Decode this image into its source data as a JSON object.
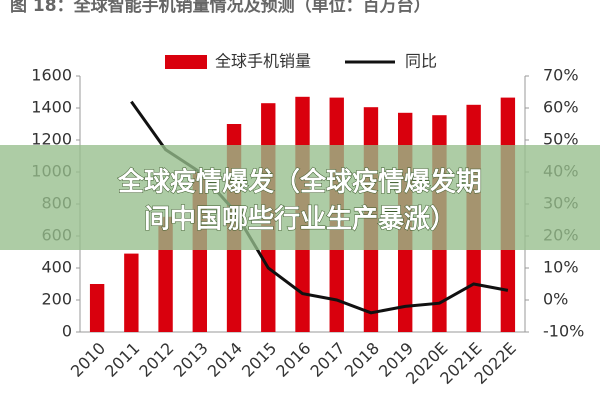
{
  "chart_data": {
    "type": "bar-line",
    "title": "图 18：全球智能手机销量情况及预测（单位：百万台）",
    "categories": [
      "2010",
      "2011",
      "2012",
      "2013",
      "2014",
      "2015",
      "2016",
      "2017",
      "2018",
      "2019",
      "2020E",
      "2021E",
      "2022E"
    ],
    "series": [
      {
        "name": "全球手机销量",
        "type": "bar",
        "color": "#d9000d",
        "values": [
          300,
          490,
          720,
          1000,
          1300,
          1430,
          1470,
          1465,
          1405,
          1370,
          1355,
          1420,
          1465
        ]
      },
      {
        "name": "同比",
        "type": "line",
        "axis": "y2",
        "color": "#111111",
        "values": [
          null,
          62,
          47,
          40,
          28,
          10,
          2,
          0,
          -4,
          -2,
          -1,
          5,
          3
        ]
      }
    ],
    "ylim": [
      0,
      1600
    ],
    "yticks": [
      0,
      200,
      400,
      600,
      800,
      1000,
      1200,
      1400,
      1600
    ],
    "y2lim": [
      -10,
      70
    ],
    "y2ticks": [
      {
        "value": -10,
        "label": "-10%"
      },
      {
        "value": 0,
        "label": "0%"
      },
      {
        "value": 10,
        "label": "10%"
      },
      {
        "value": 20,
        "label": "20%"
      },
      {
        "value": 30,
        "label": "30%"
      },
      {
        "value": 40,
        "label": "40%"
      },
      {
        "value": 50,
        "label": "50%"
      },
      {
        "value": 60,
        "label": "60%"
      },
      {
        "value": 70,
        "label": "70%"
      }
    ],
    "legend": "top"
  },
  "overlay": {
    "lines": [
      "全球疫情爆发（全球疫情爆发期",
      "间中国哪些行业生产暴涨）"
    ]
  }
}
